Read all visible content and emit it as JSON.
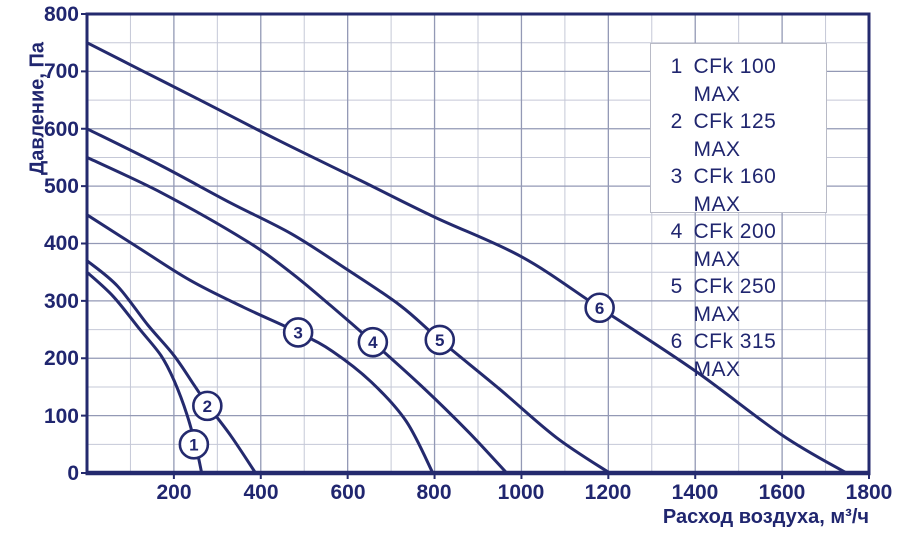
{
  "colors": {
    "navy": "#242a6e",
    "text": "#20266f",
    "grid_minor": "#c5c8d7",
    "grid_major": "#9399b5",
    "legend_border": "#b8bac6",
    "background": "#ffffff"
  },
  "chart_data": {
    "type": "line",
    "title": "",
    "xlabel": "Расход воздуха, м³/ч",
    "ylabel": "Давление, Па",
    "xlim": [
      0,
      1800
    ],
    "ylim": [
      0,
      800
    ],
    "grid": {
      "x_minor": 100,
      "x_major": 200,
      "y_minor": 50,
      "y_major": 100
    },
    "x_tick_labels": [
      "200",
      "400",
      "600",
      "800",
      "1000",
      "1200",
      "1400",
      "1600",
      "1800"
    ],
    "y_tick_labels": [
      "800",
      "700",
      "600",
      "500",
      "400",
      "300",
      "200",
      "100",
      "0"
    ],
    "legend_position": "top-right",
    "series": [
      {
        "num": "1",
        "name": "CFk 100 MAX",
        "label_at": [
          246,
          50
        ],
        "points": [
          [
            0,
            350
          ],
          [
            60,
            308
          ],
          [
            122,
            250
          ],
          [
            170,
            205
          ],
          [
            200,
            162
          ],
          [
            230,
            102
          ],
          [
            252,
            42
          ],
          [
            264,
            0
          ]
        ]
      },
      {
        "num": "2",
        "name": "CFk 125 MAX",
        "label_at": [
          277,
          117
        ],
        "points": [
          [
            0,
            370
          ],
          [
            70,
            326
          ],
          [
            140,
            258
          ],
          [
            200,
            205
          ],
          [
            245,
            155
          ],
          [
            278,
            118
          ],
          [
            332,
            64
          ],
          [
            388,
            0
          ]
        ]
      },
      {
        "num": "3",
        "name": "CFk 160 MAX",
        "label_at": [
          486,
          245
        ],
        "points": [
          [
            0,
            450
          ],
          [
            120,
            392
          ],
          [
            237,
            336
          ],
          [
            360,
            289
          ],
          [
            486,
            245
          ],
          [
            565,
            212
          ],
          [
            655,
            158
          ],
          [
            735,
            90
          ],
          [
            796,
            0
          ]
        ]
      },
      {
        "num": "4",
        "name": "CFk 200 MAX",
        "label_at": [
          658,
          228
        ],
        "points": [
          [
            0,
            550
          ],
          [
            170,
            489
          ],
          [
            364,
            406
          ],
          [
            470,
            349
          ],
          [
            562,
            291
          ],
          [
            658,
            228
          ],
          [
            775,
            148
          ],
          [
            880,
            70
          ],
          [
            966,
            0
          ]
        ]
      },
      {
        "num": "5",
        "name": "CFk 250 MAX",
        "label_at": [
          812,
          232
        ],
        "points": [
          [
            0,
            600
          ],
          [
            170,
            536
          ],
          [
            330,
            471
          ],
          [
            470,
            417
          ],
          [
            600,
            354
          ],
          [
            721,
            292
          ],
          [
            812,
            232
          ],
          [
            950,
            146
          ],
          [
            1080,
            62
          ],
          [
            1203,
            0
          ]
        ]
      },
      {
        "num": "6",
        "name": "CFk 315 MAX",
        "label_at": [
          1180,
          288
        ],
        "points": [
          [
            0,
            750
          ],
          [
            130,
            700
          ],
          [
            260,
            650
          ],
          [
            440,
            580
          ],
          [
            629,
            510
          ],
          [
            800,
            446
          ],
          [
            1000,
            377
          ],
          [
            1180,
            288
          ],
          [
            1400,
            178
          ],
          [
            1600,
            66
          ],
          [
            1748,
            0
          ]
        ]
      }
    ]
  }
}
